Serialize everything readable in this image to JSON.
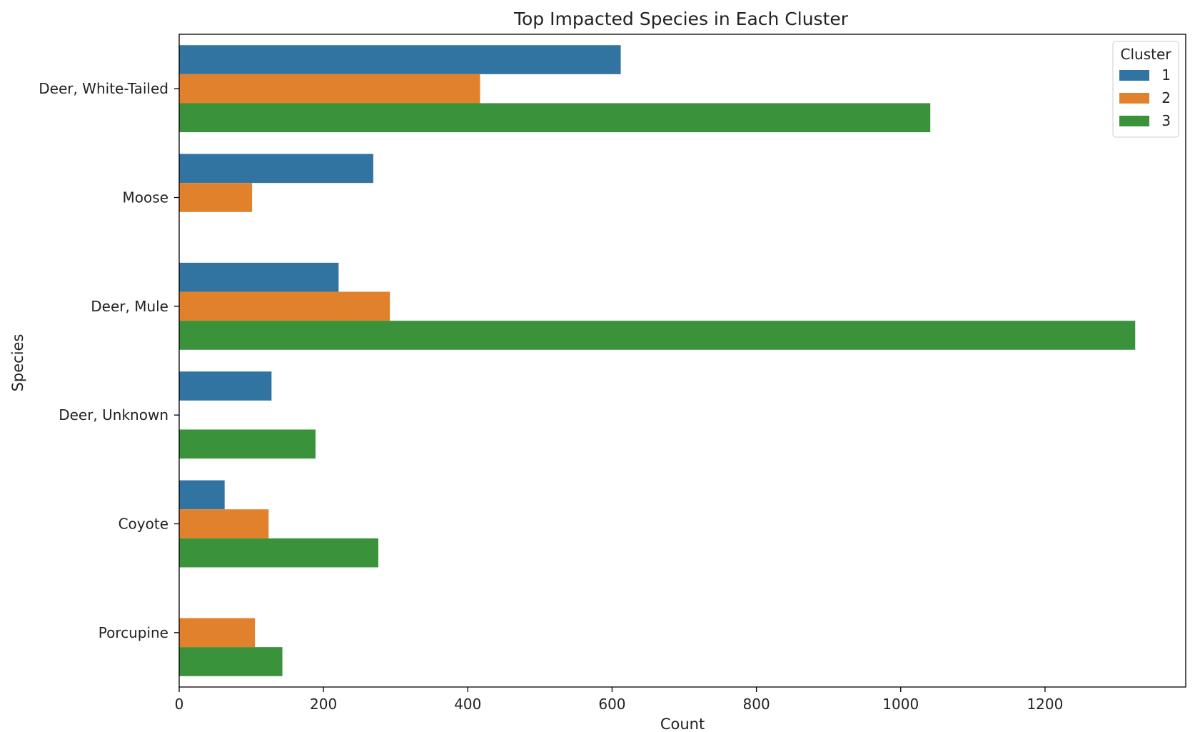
{
  "chart_data": {
    "type": "bar",
    "orientation": "horizontal",
    "title": "Top Impacted Species in Each Cluster",
    "xlabel": "Count",
    "ylabel": "Species",
    "categories": [
      "Deer, White-Tailed",
      "Moose",
      "Deer, Mule",
      "Deer, Unknown",
      "Coyote",
      "Porcupine"
    ],
    "series": [
      {
        "name": "1",
        "color": "#3274a1",
        "values": [
          612,
          269,
          221,
          128,
          63,
          null
        ]
      },
      {
        "name": "2",
        "color": "#e1812c",
        "values": [
          417,
          101,
          292,
          null,
          124,
          105
        ]
      },
      {
        "name": "3",
        "color": "#3a923a",
        "values": [
          1041,
          null,
          1325,
          189,
          276,
          143
        ]
      }
    ],
    "xlim": [
      0,
      1395
    ],
    "xticks": [
      0,
      200,
      400,
      600,
      800,
      1000,
      1200
    ],
    "grid": false,
    "legend": {
      "title": "Cluster",
      "position": "top-right"
    }
  }
}
